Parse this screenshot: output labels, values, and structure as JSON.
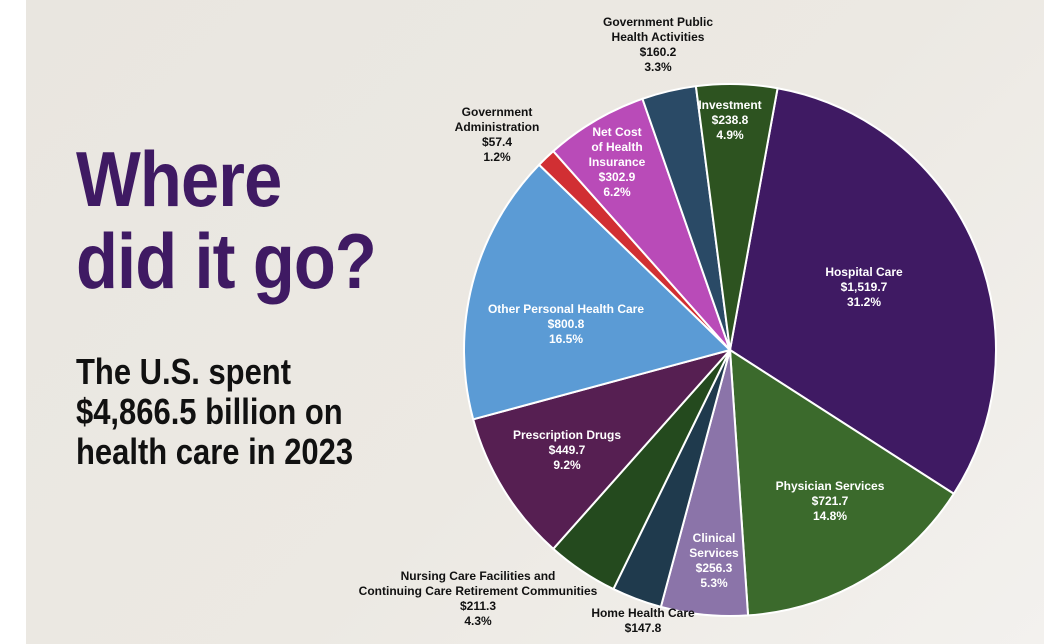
{
  "headline": [
    "Where",
    "did it go?"
  ],
  "subheadline": [
    "The U.S. spent",
    "$4,866.5 billion on",
    "health care in 2023"
  ],
  "chart_data": {
    "type": "pie",
    "slices": [
      {
        "label": "Hospital Care",
        "amount": "$1,519.7",
        "pct_label": "31.2%",
        "value": 1519.7,
        "color": "#3f1a63"
      },
      {
        "label": "Physician Services",
        "amount": "$721.7",
        "pct_label": "14.8%",
        "value": 721.7,
        "color": "#3b6a2c"
      },
      {
        "label": "Clinical Services",
        "amount": "$256.3",
        "pct_label": "5.3%",
        "value": 256.3,
        "color": "#8b74a9"
      },
      {
        "label": "Home Health Care",
        "amount": "$147.8",
        "pct_label": "",
        "value": 147.8,
        "color": "#1f3a4d"
      },
      {
        "label": "Nursing Care Facilities and Continuing Care Retirement Communities",
        "amount": "$211.3",
        "pct_label": "4.3%",
        "value": 211.3,
        "color": "#244a1e"
      },
      {
        "label": "Prescription Drugs",
        "amount": "$449.7",
        "pct_label": "9.2%",
        "value": 449.7,
        "color": "#561f52"
      },
      {
        "label": "Other Personal Health Care",
        "amount": "$800.8",
        "pct_label": "16.5%",
        "value": 800.8,
        "color": "#5b9bd5"
      },
      {
        "label": "Government Administration",
        "amount": "$57.4",
        "pct_label": "1.2%",
        "value": 57.4,
        "color": "#d12f33"
      },
      {
        "label": "Net Cost of Health Insurance",
        "amount": "$302.9",
        "pct_label": "6.2%",
        "value": 302.9,
        "color": "#b94bb8"
      },
      {
        "label": "Government Public Health Activities",
        "amount": "$160.2",
        "pct_label": "3.3%",
        "value": 160.2,
        "color": "#2a4a66"
      },
      {
        "label": "Investment",
        "amount": "$238.8",
        "pct_label": "4.9%",
        "value": 238.8,
        "color": "#2d5320"
      }
    ]
  }
}
